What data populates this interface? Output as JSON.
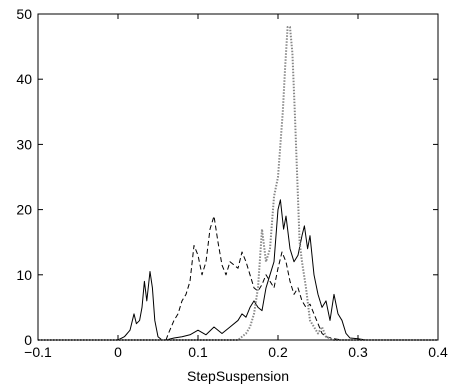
{
  "chart_data": {
    "type": "line",
    "title": "",
    "xlabel": "StepSuspension",
    "ylabel": "",
    "xlim": [
      -0.1,
      0.4
    ],
    "ylim": [
      0,
      50
    ],
    "xticks": [
      -0.1,
      0,
      0.1,
      0.2,
      0.3,
      0.4
    ],
    "xtick_labels": [
      "−0.1",
      "0",
      "0.1",
      "0.2",
      "0.3",
      "0.4"
    ],
    "yticks": [
      0,
      10,
      20,
      30,
      40,
      50
    ],
    "ytick_labels": [
      "0",
      "10",
      "20",
      "30",
      "40",
      "50"
    ],
    "grid": false,
    "legend": "none",
    "box": true,
    "series": [
      {
        "style": "solid",
        "color": "#000000",
        "x": [
          -0.1,
          0.0,
          0.008,
          0.015,
          0.02,
          0.023,
          0.027,
          0.03,
          0.033,
          0.036,
          0.04,
          0.043,
          0.046,
          0.05,
          0.055,
          0.06,
          0.07,
          0.08,
          0.09,
          0.1,
          0.11,
          0.12,
          0.13,
          0.14,
          0.15,
          0.155,
          0.16,
          0.165,
          0.17,
          0.175,
          0.18,
          0.185,
          0.19,
          0.195,
          0.2,
          0.203,
          0.207,
          0.21,
          0.215,
          0.22,
          0.225,
          0.23,
          0.233,
          0.237,
          0.24,
          0.245,
          0.25,
          0.255,
          0.26,
          0.265,
          0.27,
          0.275,
          0.28,
          0.285,
          0.29,
          0.3,
          0.31,
          0.4
        ],
        "y": [
          0,
          0,
          0.5,
          1.5,
          4,
          2.5,
          3,
          5,
          9,
          6,
          10.5,
          8,
          3,
          0.5,
          0,
          0,
          0.3,
          0.5,
          0.8,
          1.5,
          0.8,
          2,
          1,
          2,
          3,
          4,
          3.5,
          5,
          6,
          5,
          4.5,
          8,
          10,
          12,
          20,
          21.5,
          17,
          19,
          14,
          12,
          13,
          16,
          17.5,
          14,
          16,
          10,
          7,
          5,
          6,
          3,
          7,
          4,
          3,
          1,
          0.3,
          0.2,
          0,
          0
        ]
      },
      {
        "style": "dashed",
        "color": "#000000",
        "x": [
          -0.1,
          0.06,
          0.063,
          0.07,
          0.075,
          0.08,
          0.085,
          0.09,
          0.095,
          0.1,
          0.105,
          0.11,
          0.115,
          0.12,
          0.125,
          0.13,
          0.135,
          0.14,
          0.145,
          0.15,
          0.155,
          0.16,
          0.165,
          0.17,
          0.175,
          0.18,
          0.185,
          0.19,
          0.195,
          0.2,
          0.205,
          0.21,
          0.215,
          0.22,
          0.225,
          0.23,
          0.235,
          0.24,
          0.245,
          0.25,
          0.255,
          0.26,
          0.27,
          0.28,
          0.3,
          0.4
        ],
        "y": [
          0,
          0,
          1,
          3,
          4,
          6,
          7,
          9,
          14.5,
          13,
          10,
          12,
          17,
          19,
          15,
          11.5,
          10,
          12,
          11.5,
          11,
          13.5,
          12,
          10,
          8,
          7.5,
          8.5,
          10,
          9,
          8,
          11,
          13.5,
          12,
          9,
          7,
          8,
          6,
          5,
          5.5,
          4,
          2.5,
          1,
          0.5,
          0.2,
          0,
          0,
          0
        ]
      },
      {
        "style": "dotted",
        "color": "#888888",
        "x": [
          -0.1,
          0.15,
          0.16,
          0.165,
          0.17,
          0.175,
          0.18,
          0.185,
          0.19,
          0.195,
          0.2,
          0.203,
          0.206,
          0.209,
          0.212,
          0.215,
          0.218,
          0.221,
          0.224,
          0.227,
          0.23,
          0.235,
          0.24,
          0.245,
          0.25,
          0.255,
          0.26,
          0.27,
          0.4
        ],
        "y": [
          0,
          0,
          1,
          2,
          4,
          8,
          17,
          12,
          14,
          22,
          25,
          30,
          35,
          42,
          48,
          48,
          44,
          35,
          25,
          15,
          12,
          8,
          3,
          2,
          1,
          2,
          0.5,
          0,
          0
        ]
      }
    ]
  }
}
